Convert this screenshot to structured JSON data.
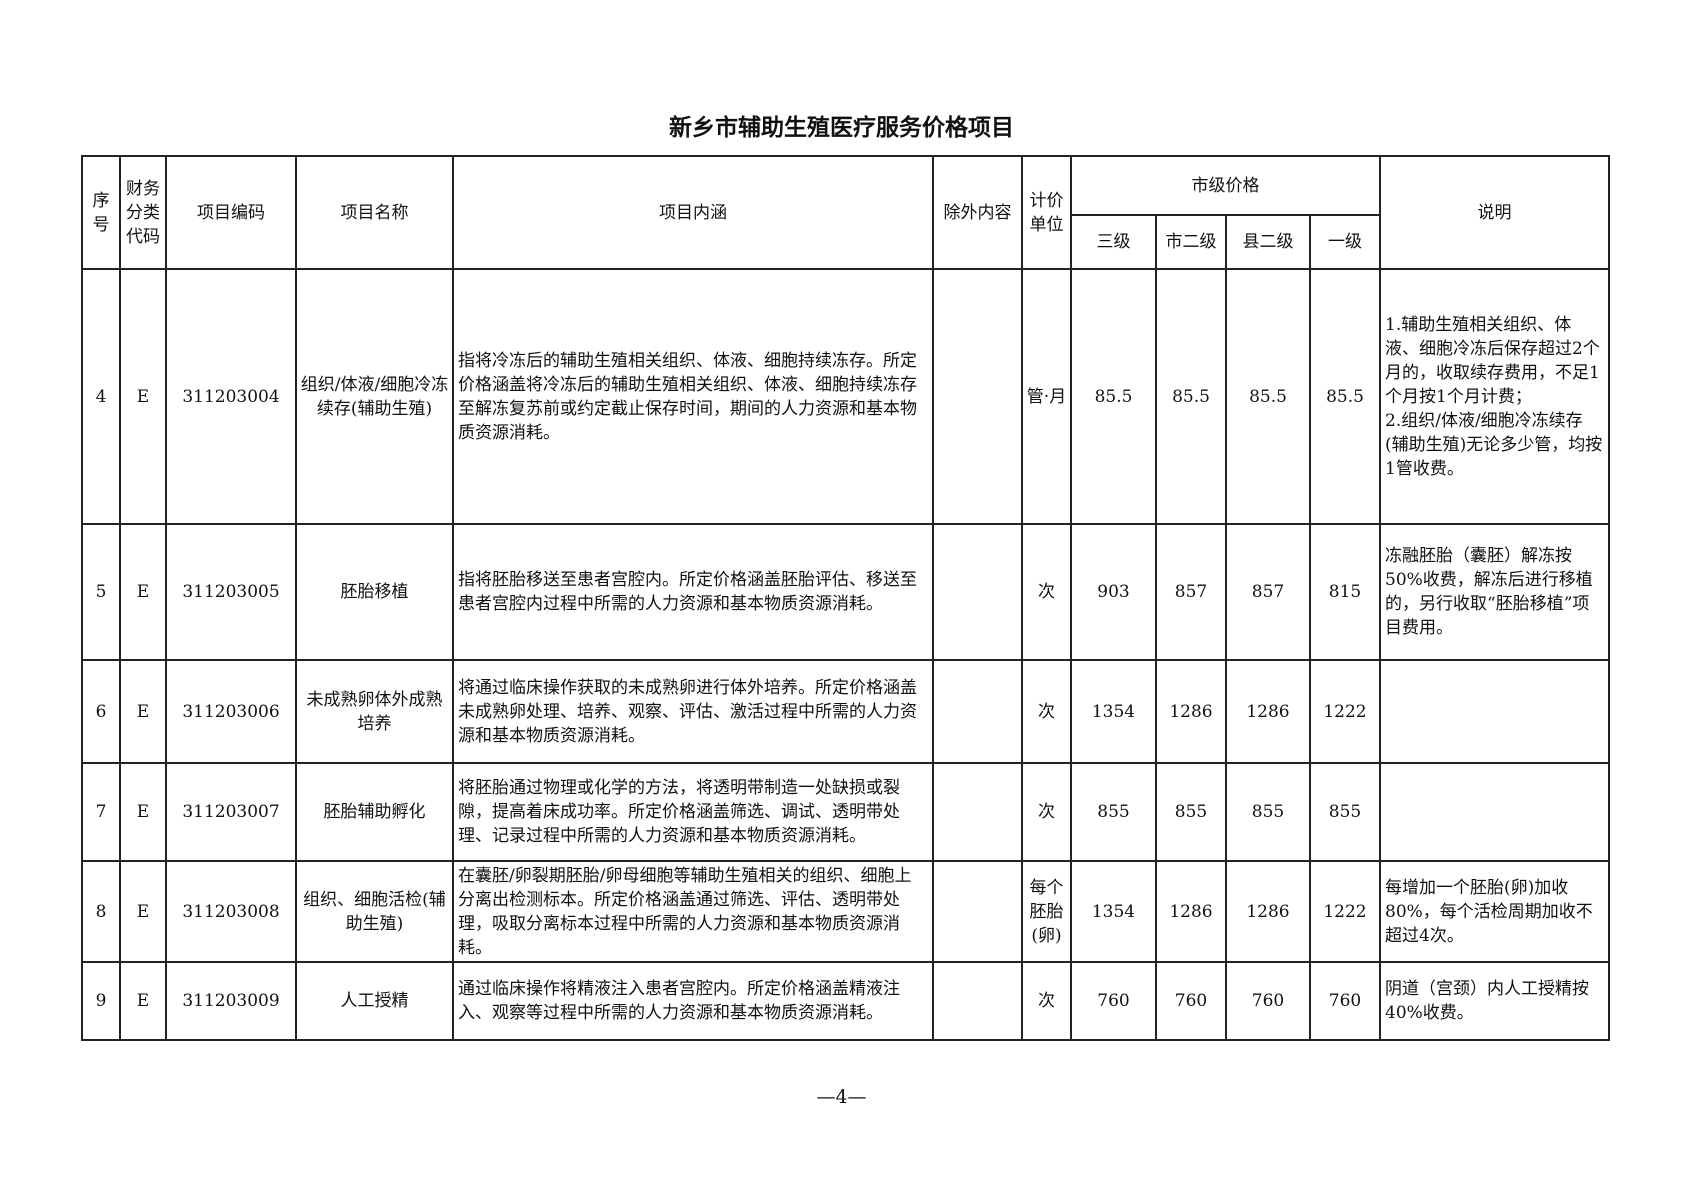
{
  "title": "新乡市辅助生殖医疗服务价格项目",
  "headers": {
    "seq": "序号",
    "fin_code": "财务分类代码",
    "item_code": "项目编码",
    "item_name": "项目名称",
    "content": "项目内涵",
    "excluded": "除外内容",
    "unit": "计价单位",
    "city_price": "市级价格",
    "level3": "三级",
    "city_level2": "市二级",
    "county_level2": "县二级",
    "level1": "一级",
    "note": "说明"
  },
  "rows": [
    {
      "seq": "4",
      "fin": "E",
      "code": "311203004",
      "name": "组织/体液/细胞冷冻续存(辅助生殖)",
      "content": "指将冷冻后的辅助生殖相关组织、体液、细胞持续冻存。所定价格涵盖将冷冻后的辅助生殖相关组织、体液、细胞持续冻存至解冻复苏前或约定截止保存时间，期间的人力资源和基本物质资源消耗。",
      "excluded": "",
      "unit": "管·月",
      "p3": "85.5",
      "pc2": "85.5",
      "pk2": "85.5",
      "p1": "85.5",
      "note": "1.辅助生殖相关组织、体液、细胞冷冻后保存超过2个月的，收取续存费用，不足1个月按1个月计费；\n2.组织/体液/细胞冷冻续存(辅助生殖)无论多少管，均按1管收费。"
    },
    {
      "seq": "5",
      "fin": "E",
      "code": "311203005",
      "name": "胚胎移植",
      "content": "指将胚胎移送至患者宫腔内。所定价格涵盖胚胎评估、移送至患者宫腔内过程中所需的人力资源和基本物质资源消耗。",
      "excluded": "",
      "unit": "次",
      "p3": "903",
      "pc2": "857",
      "pk2": "857",
      "p1": "815",
      "note": "冻融胚胎（囊胚）解冻按50%收费，解冻后进行移植的，另行收取“胚胎移植”项目费用。"
    },
    {
      "seq": "6",
      "fin": "E",
      "code": "311203006",
      "name": "未成熟卵体外成熟培养",
      "content": "将通过临床操作获取的未成熟卵进行体外培养。所定价格涵盖未成熟卵处理、培养、观察、评估、激活过程中所需的人力资源和基本物质资源消耗。",
      "excluded": "",
      "unit": "次",
      "p3": "1354",
      "pc2": "1286",
      "pk2": "1286",
      "p1": "1222",
      "note": ""
    },
    {
      "seq": "7",
      "fin": "E",
      "code": "311203007",
      "name": "胚胎辅助孵化",
      "content": "将胚胎通过物理或化学的方法，将透明带制造一处缺损或裂隙，提高着床成功率。所定价格涵盖筛选、调试、透明带处理、记录过程中所需的人力资源和基本物质资源消耗。",
      "excluded": "",
      "unit": "次",
      "p3": "855",
      "pc2": "855",
      "pk2": "855",
      "p1": "855",
      "note": ""
    },
    {
      "seq": "8",
      "fin": "E",
      "code": "311203008",
      "name": "组织、细胞活检(辅助生殖)",
      "content": "在囊胚/卵裂期胚胎/卵母细胞等辅助生殖相关的组织、细胞上分离出检测标本。所定价格涵盖通过筛选、评估、透明带处理，吸取分离标本过程中所需的人力资源和基本物质资源消耗。",
      "excluded": "",
      "unit": "每个胚胎(卵)",
      "p3": "1354",
      "pc2": "1286",
      "pk2": "1286",
      "p1": "1222",
      "note": "每增加一个胚胎(卵)加收80%，每个活检周期加收不超过4次。"
    },
    {
      "seq": "9",
      "fin": "E",
      "code": "311203009",
      "name": "人工授精",
      "content": "通过临床操作将精液注入患者宫腔内。所定价格涵盖精液注入、观察等过程中所需的人力资源和基本物质资源消耗。",
      "excluded": "",
      "unit": "次",
      "p3": "760",
      "pc2": "760",
      "pk2": "760",
      "p1": "760",
      "note": "阴道（宫颈）内人工授精按40%收费。"
    }
  ],
  "page_number": "—4—"
}
